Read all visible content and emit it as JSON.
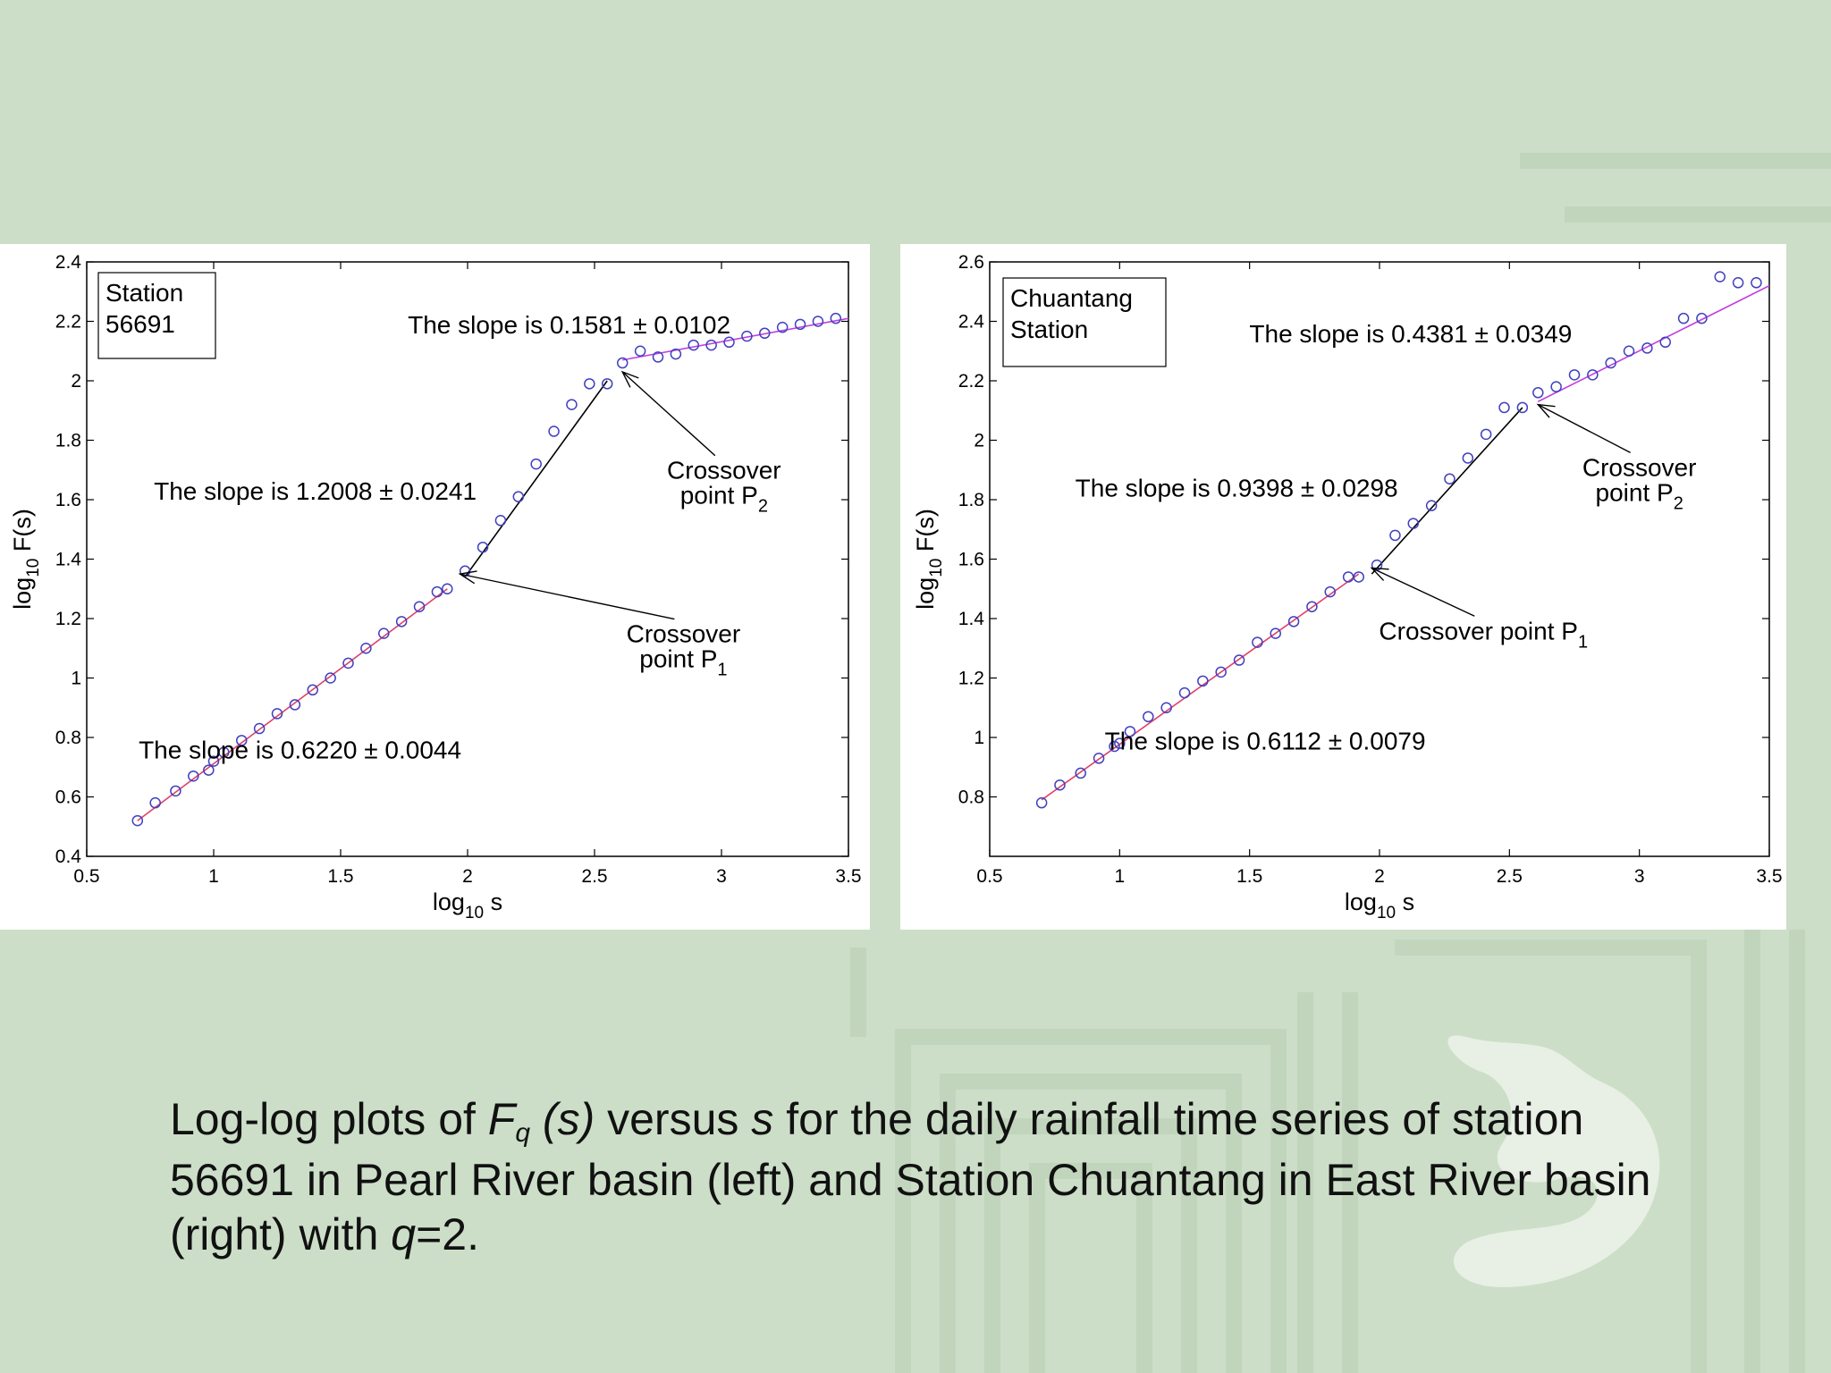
{
  "colors": {
    "background": "#ccdec8",
    "marker": "#4040c0",
    "fit_low": "#e0406a",
    "fit_mid": "#000000",
    "fit_high": "#c040e0"
  },
  "caption": {
    "p1": "Log-log plots of ",
    "F": "F",
    "q_sub": "q",
    "p2": " (s)",
    "p3": " versus ",
    "s": "s",
    "p4": " for the daily rainfall time series  of station 56691 in Pearl River basin (left) and Station Chuantang in East River basin (right) with ",
    "q": "q",
    "p5": "=2."
  },
  "chart_data": [
    {
      "type": "scatter",
      "legend": [
        "Station",
        "56691"
      ],
      "xlabel_main": "log",
      "xlabel_sub": "10",
      "xlabel_tail": " s",
      "ylabel_main": "log",
      "ylabel_sub": "10",
      "ylabel_tail": " F(s)",
      "xlim": [
        0.5,
        3.5
      ],
      "ylim": [
        0.4,
        2.4
      ],
      "xticks": [
        "0.5",
        "1",
        "1.5",
        "2",
        "2.5",
        "3",
        "3.5"
      ],
      "yticks": [
        "0.4",
        "0.6",
        "0.8",
        "1",
        "1.2",
        "1.4",
        "1.6",
        "1.8",
        "2",
        "2.2",
        "2.4"
      ],
      "grid": false,
      "series": [
        {
          "x": [
            0.7,
            0.77,
            0.85,
            0.92,
            0.98,
            1.0,
            1.04,
            1.11,
            1.18,
            1.25,
            1.32,
            1.39,
            1.46,
            1.53,
            1.6,
            1.67,
            1.74,
            1.81,
            1.88,
            1.92
          ],
          "y": [
            0.52,
            0.58,
            0.62,
            0.67,
            0.69,
            0.72,
            0.75,
            0.79,
            0.83,
            0.88,
            0.91,
            0.96,
            1.0,
            1.05,
            1.1,
            1.15,
            1.19,
            1.24,
            1.29,
            1.3
          ]
        },
        {
          "x": [
            1.99,
            2.06,
            2.13,
            2.2,
            2.27,
            2.34,
            2.41,
            2.48,
            2.55
          ],
          "y": [
            1.36,
            1.44,
            1.53,
            1.61,
            1.72,
            1.83,
            1.92,
            1.99,
            1.99
          ]
        },
        {
          "x": [
            2.61,
            2.68,
            2.75,
            2.82,
            2.89,
            2.96,
            3.03,
            3.1,
            3.17,
            3.24,
            3.31,
            3.38,
            3.45
          ],
          "y": [
            2.06,
            2.1,
            2.08,
            2.09,
            2.12,
            2.12,
            2.13,
            2.15,
            2.16,
            2.18,
            2.19,
            2.2,
            2.21
          ]
        }
      ],
      "fits": [
        {
          "x": [
            0.7,
            1.92
          ],
          "y": [
            0.52,
            1.3
          ]
        },
        {
          "x": [
            1.99,
            2.55
          ],
          "y": [
            1.34,
            2.0
          ]
        },
        {
          "x": [
            2.61,
            3.5
          ],
          "y": [
            2.07,
            2.21
          ]
        }
      ],
      "annotations": [
        {
          "text": "The slope is 0.1581 ± 0.0102",
          "x": 2.4,
          "y": 2.16
        },
        {
          "text": "The slope is 1.2008 ± 0.0241",
          "x": 1.4,
          "y": 1.6
        },
        {
          "text": "The slope is 0.6220 ± 0.0044",
          "x": 1.34,
          "y": 0.73
        }
      ],
      "crossover_labels": [
        {
          "line1": "Crossover",
          "line2": "point P",
          "sub": "2",
          "x": 3.01,
          "y": 1.67,
          "target": [
            2.61,
            2.03
          ]
        },
        {
          "line1": "Crossover",
          "line2": "point P",
          "sub": "1",
          "x": 2.85,
          "y": 1.12,
          "target": [
            1.97,
            1.35
          ]
        }
      ]
    },
    {
      "type": "scatter",
      "legend": [
        "Chuantang",
        "Station"
      ],
      "xlabel_main": "log",
      "xlabel_sub": "10",
      "xlabel_tail": " s",
      "ylabel_main": "log",
      "ylabel_sub": "10",
      "ylabel_tail": " F(s)",
      "xlim": [
        0.5,
        3.5
      ],
      "ylim": [
        0.6,
        2.6
      ],
      "xticks": [
        "0.5",
        "1",
        "1.5",
        "2",
        "2.5",
        "3",
        "3.5"
      ],
      "yticks": [
        "0.8",
        "1",
        "1.2",
        "1.4",
        "1.6",
        "1.8",
        "2",
        "2.2",
        "2.4",
        "2.6"
      ],
      "grid": false,
      "series": [
        {
          "x": [
            0.7,
            0.77,
            0.85,
            0.92,
            0.98,
            1.0,
            1.04,
            1.11,
            1.18,
            1.25,
            1.32,
            1.39,
            1.46,
            1.53,
            1.6,
            1.67,
            1.74,
            1.81,
            1.88,
            1.92
          ],
          "y": [
            0.78,
            0.84,
            0.88,
            0.93,
            0.97,
            0.98,
            1.02,
            1.07,
            1.1,
            1.15,
            1.19,
            1.22,
            1.26,
            1.32,
            1.35,
            1.39,
            1.44,
            1.49,
            1.54,
            1.54
          ]
        },
        {
          "x": [
            1.99,
            2.06,
            2.13,
            2.2,
            2.27,
            2.34,
            2.41,
            2.48,
            2.55
          ],
          "y": [
            1.58,
            1.68,
            1.72,
            1.78,
            1.87,
            1.94,
            2.02,
            2.11,
            2.11
          ]
        },
        {
          "x": [
            2.61,
            2.68,
            2.75,
            2.82,
            2.89,
            2.96,
            3.03,
            3.1,
            3.17,
            3.24,
            3.31,
            3.38,
            3.45
          ],
          "y": [
            2.16,
            2.18,
            2.22,
            2.22,
            2.26,
            2.3,
            2.31,
            2.33,
            2.41,
            2.41,
            2.55,
            2.53,
            2.53
          ]
        }
      ],
      "fits": [
        {
          "x": [
            0.7,
            1.92
          ],
          "y": [
            0.79,
            1.55
          ]
        },
        {
          "x": [
            1.97,
            2.55
          ],
          "y": [
            1.55,
            2.11
          ]
        },
        {
          "x": [
            2.61,
            3.5
          ],
          "y": [
            2.13,
            2.52
          ]
        }
      ],
      "annotations": [
        {
          "text": "The slope is 0.4381 ± 0.0349",
          "x": 2.12,
          "y": 2.33
        },
        {
          "text": "The slope is 0.9398 ± 0.0298",
          "x": 1.45,
          "y": 1.81
        },
        {
          "text": "The slope is 0.6112 ± 0.0079",
          "x": 1.56,
          "y": 0.96
        }
      ],
      "crossover_labels": [
        {
          "line1": "Crossover",
          "line2": "point P",
          "sub": "2",
          "x": 3.0,
          "y": 1.88,
          "target": [
            2.61,
            2.12
          ]
        },
        {
          "line1": "Crossover point P",
          "line2": "",
          "sub": "1",
          "x": 2.4,
          "y": 1.33,
          "target": [
            1.97,
            1.57
          ]
        }
      ]
    }
  ]
}
